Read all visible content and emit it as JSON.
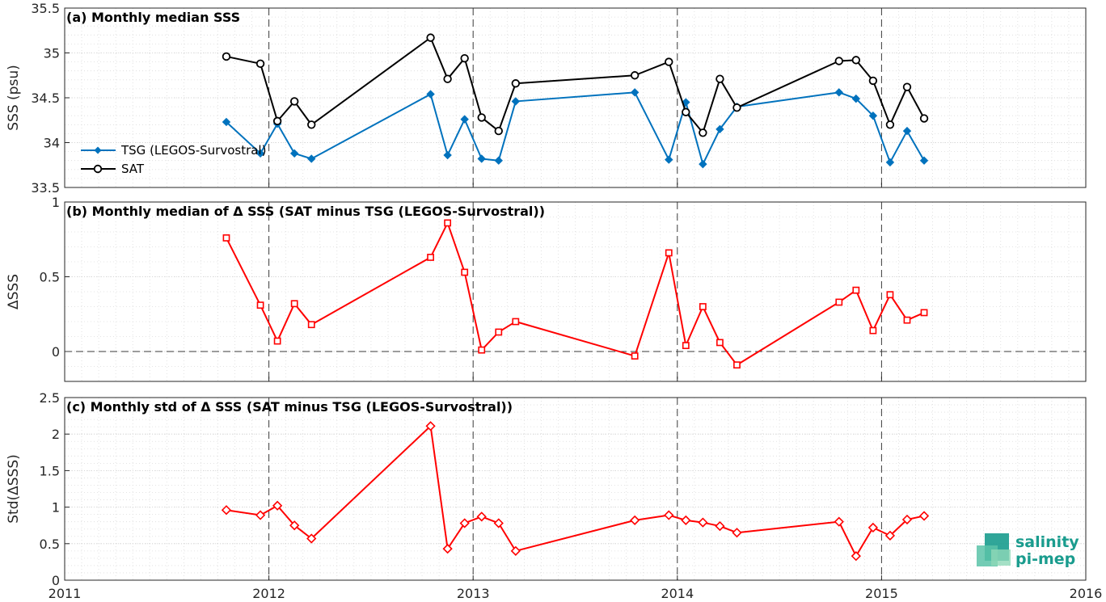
{
  "chart_data": [
    {
      "type": "line",
      "title": "(a) Monthly median SSS",
      "ylabel": "SSS (psu)",
      "ylim": [
        33.5,
        35.5
      ],
      "yticks": [
        "33.5",
        "34",
        "34.5",
        "35",
        "35.5"
      ],
      "grid": true,
      "legend_placement": "left",
      "series": [
        {
          "name": "TSG (LEGOS-Survostral)",
          "color": "#0072bd",
          "marker": "diamond-filled",
          "x": [
            "2011-10",
            "2011-12",
            "2012-01",
            "2012-02",
            "2012-03",
            "2012-10",
            "2012-11",
            "2012-12",
            "2013-01",
            "2013-02",
            "2013-03",
            "2013-10",
            "2013-12",
            "2014-01",
            "2014-02",
            "2014-03",
            "2014-04",
            "2014-10",
            "2014-11",
            "2014-12",
            "2015-01",
            "2015-02",
            "2015-03"
          ],
          "values": [
            34.23,
            33.88,
            34.21,
            33.88,
            33.82,
            34.54,
            33.86,
            34.26,
            33.82,
            33.8,
            34.46,
            34.56,
            33.81,
            34.45,
            33.76,
            34.15,
            34.4,
            34.56,
            34.49,
            34.3,
            33.78,
            34.13,
            33.8
          ]
        },
        {
          "name": "SAT",
          "color": "#000000",
          "marker": "circle",
          "x": [
            "2011-10",
            "2011-12",
            "2012-01",
            "2012-02",
            "2012-03",
            "2012-10",
            "2012-11",
            "2012-12",
            "2013-01",
            "2013-02",
            "2013-03",
            "2013-10",
            "2013-12",
            "2014-01",
            "2014-02",
            "2014-03",
            "2014-04",
            "2014-10",
            "2014-11",
            "2014-12",
            "2015-01",
            "2015-02",
            "2015-03"
          ],
          "values": [
            34.96,
            34.88,
            34.24,
            34.46,
            34.2,
            35.17,
            34.71,
            34.94,
            34.28,
            34.13,
            34.66,
            34.75,
            34.9,
            34.34,
            34.11,
            34.71,
            34.39,
            34.91,
            34.92,
            34.69,
            34.2,
            34.62,
            34.27
          ]
        }
      ]
    },
    {
      "type": "line",
      "title": "(b) Monthly median of Δ SSS (SAT minus TSG (LEGOS-Survostral))",
      "ylabel": "ΔSSS",
      "ylim": [
        -0.2,
        1
      ],
      "yticks": [
        "0",
        "0.5",
        "1"
      ],
      "grid": true,
      "zero_line": true,
      "series": [
        {
          "color": "#ff0000",
          "marker": "square",
          "x": [
            "2011-10",
            "2011-12",
            "2012-01",
            "2012-02",
            "2012-03",
            "2012-10",
            "2012-11",
            "2012-12",
            "2013-01",
            "2013-02",
            "2013-03",
            "2013-10",
            "2013-12",
            "2014-01",
            "2014-02",
            "2014-03",
            "2014-04",
            "2014-10",
            "2014-11",
            "2014-12",
            "2015-01",
            "2015-02",
            "2015-03"
          ],
          "values": [
            0.76,
            0.31,
            0.07,
            0.32,
            0.18,
            0.63,
            0.86,
            0.53,
            0.01,
            0.13,
            0.2,
            -0.03,
            0.66,
            0.04,
            0.3,
            0.06,
            -0.09,
            0.33,
            0.41,
            0.14,
            0.38,
            0.21,
            0.26
          ]
        }
      ]
    },
    {
      "type": "line",
      "title": "(c) Monthly std of Δ SSS (SAT minus TSG (LEGOS-Survostral))",
      "ylabel": "Std(ΔSSS)",
      "ylim": [
        0,
        2.5
      ],
      "yticks": [
        "0",
        "0.5",
        "1",
        "1.5",
        "2",
        "2.5"
      ],
      "grid": true,
      "series": [
        {
          "color": "#ff0000",
          "marker": "diamond",
          "x": [
            "2011-10",
            "2011-12",
            "2012-01",
            "2012-02",
            "2012-03",
            "2012-10",
            "2012-11",
            "2012-12",
            "2013-01",
            "2013-02",
            "2013-03",
            "2013-10",
            "2013-12",
            "2014-01",
            "2014-02",
            "2014-03",
            "2014-04",
            "2014-10",
            "2014-11",
            "2014-12",
            "2015-01",
            "2015-02",
            "2015-03"
          ],
          "values": [
            0.96,
            0.89,
            1.02,
            0.75,
            0.57,
            2.11,
            0.43,
            0.78,
            0.87,
            0.78,
            0.4,
            0.82,
            0.89,
            0.82,
            0.79,
            0.74,
            0.65,
            0.8,
            0.33,
            0.72,
            0.61,
            0.83,
            0.88
          ]
        }
      ]
    }
  ],
  "x_axis": {
    "range": [
      "2011-01",
      "2016-01"
    ],
    "ticks": [
      "2011",
      "2012",
      "2013",
      "2014",
      "2015",
      "2016"
    ],
    "year_boundary_lines": [
      "2012",
      "2013",
      "2014",
      "2015"
    ]
  },
  "logo": {
    "line1": "salinity",
    "line2": "pi-mep",
    "color": "#1a9c8e"
  }
}
